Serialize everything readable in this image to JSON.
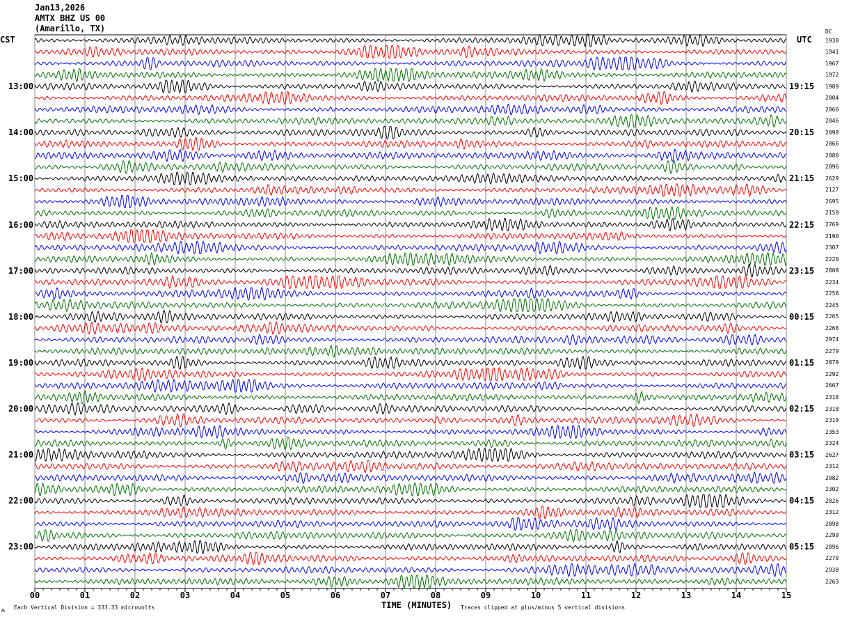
{
  "header": {
    "date": "Jan13,2026",
    "station": "AMTX BHZ US 00",
    "location": "(Amarillo, TX)"
  },
  "left_axis_title": "CST",
  "right_axis_title": "UTC",
  "dc_title": "DC",
  "footer": {
    "scale_note": "Each Vertical Division =  333.33 microvolts",
    "xlabel": "TIME (MINUTES)",
    "clip_note": "Traces clipped at plus/minus 5 vertical divisions",
    "logo_mark": "ʍ"
  },
  "chart_data": {
    "type": "line",
    "subtype": "helicorder",
    "xlabel": "TIME (MINUTES)",
    "xlim": [
      0,
      15
    ],
    "x_ticks": [
      "00",
      "01",
      "02",
      "03",
      "04",
      "05",
      "06",
      "07",
      "08",
      "09",
      "10",
      "11",
      "12",
      "13",
      "14",
      "15"
    ],
    "traces_per_hour": 4,
    "trace_count": 48,
    "trace_colors": [
      "#000000",
      "#ff0000",
      "#0000ff",
      "#007000"
    ],
    "cst_labels": [
      {
        "row": 4,
        "text": "13:00"
      },
      {
        "row": 8,
        "text": "14:00"
      },
      {
        "row": 12,
        "text": "15:00"
      },
      {
        "row": 16,
        "text": "16:00"
      },
      {
        "row": 20,
        "text": "17:00"
      },
      {
        "row": 24,
        "text": "18:00"
      },
      {
        "row": 28,
        "text": "19:00"
      },
      {
        "row": 32,
        "text": "20:00"
      },
      {
        "row": 36,
        "text": "21:00"
      },
      {
        "row": 40,
        "text": "22:00"
      },
      {
        "row": 44,
        "text": "23:00"
      }
    ],
    "utc_labels": [
      {
        "row": 4,
        "text": "19:15"
      },
      {
        "row": 8,
        "text": "20:15"
      },
      {
        "row": 12,
        "text": "21:15"
      },
      {
        "row": 16,
        "text": "22:15"
      },
      {
        "row": 20,
        "text": "23:15"
      },
      {
        "row": 24,
        "text": "00:15"
      },
      {
        "row": 28,
        "text": "01:15"
      },
      {
        "row": 32,
        "text": "02:15"
      },
      {
        "row": 36,
        "text": "03:15"
      },
      {
        "row": 40,
        "text": "04:15"
      },
      {
        "row": 44,
        "text": "05:15"
      }
    ],
    "dc_offsets": [
      "1938",
      "1941",
      "1967",
      "1972",
      "1989",
      "2004",
      "2060",
      "2046",
      "2098",
      "2066",
      "2080",
      "2096",
      "2629",
      "2127",
      "2695",
      "2159",
      "2769",
      "2190",
      "2307",
      "2220",
      "2808",
      "2234",
      "2258",
      "2245",
      "2265",
      "2268",
      "2974",
      "2279",
      "2879",
      "2292",
      "2667",
      "2318",
      "2318",
      "2319",
      "2353",
      "2324",
      "2627",
      "2312",
      "2082",
      "2302",
      "2826",
      "2312",
      "2898",
      "2299",
      "2896",
      "2270",
      "2938",
      "2263"
    ],
    "units_per_division_microvolts": 333.33,
    "clip_divisions": 5
  }
}
